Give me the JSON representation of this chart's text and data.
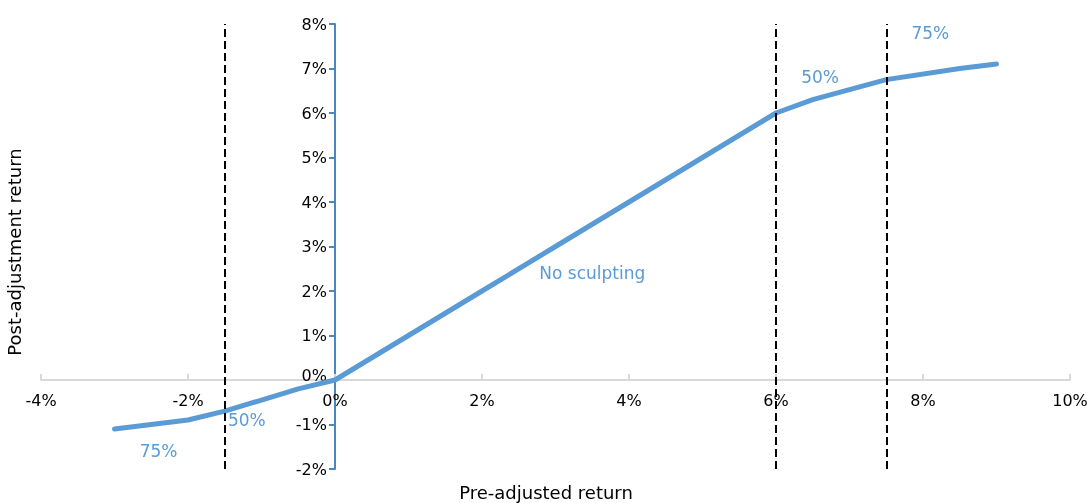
{
  "chart_data": {
    "type": "line",
    "xlabel": "Pre-adjusted return",
    "ylabel": "Post-adjustment return",
    "x": [
      -3,
      -2,
      -1.5,
      -1,
      -0.5,
      0,
      1,
      2,
      3,
      3.5,
      4,
      5,
      6,
      6.5,
      7.5,
      8.5,
      9
    ],
    "series": [
      {
        "color": "#5b9bd5",
        "values": [
          -1.1,
          -0.9,
          -0.7,
          -0.45,
          -0.2,
          0,
          1,
          2,
          3,
          3.5,
          4,
          5,
          6,
          6.3,
          6.75,
          7,
          7.1
        ]
      }
    ],
    "xlim": [
      -4,
      10
    ],
    "xticks": [
      {
        "value": -4,
        "label": "-4%"
      },
      {
        "value": -2,
        "label": "-2%"
      },
      {
        "value": 0,
        "label": "0%"
      },
      {
        "value": 2,
        "label": "2%"
      },
      {
        "value": 4,
        "label": "4%"
      },
      {
        "value": 6,
        "label": "6%"
      },
      {
        "value": 8,
        "label": "8%"
      },
      {
        "value": 10,
        "label": "10%"
      }
    ],
    "ylim": [
      -2,
      8
    ],
    "yticks": [
      {
        "value": -2,
        "label": "-2%"
      },
      {
        "value": -1,
        "label": "-1%"
      },
      {
        "value": 0,
        "label": "0%"
      },
      {
        "value": 1,
        "label": "1%"
      },
      {
        "value": 2,
        "label": "2%"
      },
      {
        "value": 3,
        "label": "3%"
      },
      {
        "value": 4,
        "label": "4%"
      },
      {
        "value": 5,
        "label": "5%"
      },
      {
        "value": 6,
        "label": "6%"
      },
      {
        "value": 7,
        "label": "7%"
      },
      {
        "value": 8,
        "label": "8%"
      }
    ],
    "ref_lines": [
      {
        "axis": "x",
        "value": -1.5,
        "color": "#000000",
        "line_style": "dashed"
      },
      {
        "axis": "x",
        "value": 6,
        "color": "#000000",
        "line_style": "dashed"
      },
      {
        "axis": "x",
        "value": 7.5,
        "color": "#000000",
        "line_style": "dashed"
      }
    ],
    "annotations": [
      "75%",
      "50%",
      "No sculpting",
      "50%",
      "75%"
    ],
    "grid": false,
    "marker": "none",
    "line_style": "solid"
  }
}
